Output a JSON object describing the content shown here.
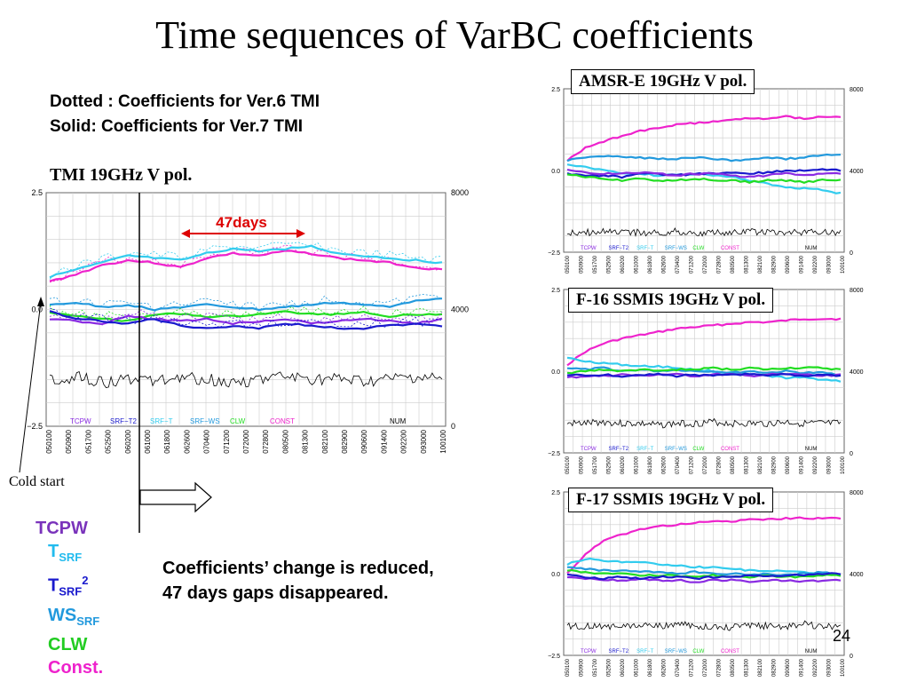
{
  "slide": {
    "title": "Time sequences of VarBC coefficients",
    "note_line1": "Dotted : Coefficients for Ver.6 TMI",
    "note_line2": "Solid: Coefficients for Ver.7 TMI",
    "cold_start": "Cold start",
    "summary_line1": "Coefficients’ change is reduced,",
    "summary_line2": "47 days gaps disappeared.",
    "page_number": "24",
    "gap_label": "47days"
  },
  "legend": {
    "tcpw": "TCPW",
    "tsrf_base": "T",
    "tsrf_sub": "SRF",
    "tsrf2_base": "T",
    "tsrf2_sub": "SRF",
    "tsrf2_sup": "2",
    "wssrf_base": "WS",
    "wssrf_sub": "SRF",
    "clw": "CLW",
    "const": "Const."
  },
  "colors": {
    "TCPW": "#8a2be2",
    "SRF-T2": "#1a1acd",
    "SRF-T": "#33ccee",
    "SRF-WS": "#2299dd",
    "CLW": "#22dd22",
    "CONST": "#ee22cc",
    "NUM": "#000000",
    "arrow": "#dd0000",
    "tcpw_text": "#7a33bb",
    "tsrf_text": "#22bbee",
    "tsrf2_text": "#1a1acd",
    "wssrf_text": "#2299dd",
    "clw_text": "#22cc22",
    "const_text": "#ee22cc"
  },
  "chart_data": [
    {
      "type": "line",
      "title": "TMI 19GHz V pol.",
      "ylim_left": [
        -2.5,
        2.5
      ],
      "ylim_right": [
        0,
        8000
      ],
      "left_ticks": [
        "2.5",
        "0.0",
        "−2.5"
      ],
      "right_ticks": [
        "8000",
        "4000",
        "0"
      ],
      "x_ticks": [
        "050100",
        "050900",
        "051700",
        "052500",
        "060200",
        "061000",
        "061800",
        "062600",
        "070400",
        "071200",
        "072000",
        "072800",
        "080500",
        "081300",
        "082100",
        "082900",
        "090600",
        "091400",
        "092200",
        "093000",
        "100100"
      ],
      "legend": [
        "TCPW",
        "SRF−T2",
        "SRF−T",
        "SRF−WS",
        "CLW",
        "CONST",
        "NUM"
      ],
      "grid": true,
      "series": [
        {
          "name": "CONST",
          "style": "solid",
          "values": [
            0.6,
            0.75,
            0.95,
            1.05,
            1.0,
            0.9,
            1.1,
            1.2,
            1.15,
            1.25,
            1.2,
            1.1,
            1.05,
            1.0,
            0.9,
            0.85
          ]
        },
        {
          "name": "SRF−T",
          "style": "solid",
          "values": [
            0.7,
            0.85,
            1.0,
            1.15,
            1.1,
            1.05,
            1.2,
            1.3,
            1.25,
            1.3,
            1.35,
            1.2,
            1.15,
            1.1,
            1.05,
            1.0
          ]
        },
        {
          "name": "SRF−WS",
          "style": "solid",
          "values": [
            0.1,
            0.15,
            0.05,
            0.1,
            0.0,
            0.05,
            0.1,
            0.05,
            0.0,
            0.05,
            0.1,
            0.15,
            0.1,
            0.05,
            0.2,
            0.25
          ]
        },
        {
          "name": "CLW",
          "style": "solid",
          "values": [
            -0.05,
            -0.15,
            -0.2,
            -0.25,
            -0.1,
            -0.1,
            -0.15,
            -0.15,
            -0.1,
            -0.05,
            -0.1,
            -0.1,
            -0.05,
            -0.15,
            -0.1,
            -0.1
          ]
        },
        {
          "name": "TCPW",
          "style": "solid",
          "values": [
            -0.2,
            -0.25,
            -0.3,
            -0.15,
            -0.2,
            -0.25,
            -0.2,
            -0.3,
            -0.25,
            -0.2,
            -0.3,
            -0.25,
            -0.2,
            -0.25,
            -0.3,
            -0.2
          ]
        },
        {
          "name": "SRF−T2",
          "style": "solid",
          "values": [
            -0.05,
            -0.2,
            -0.25,
            -0.3,
            -0.2,
            -0.35,
            -0.4,
            -0.35,
            -0.4,
            -0.3,
            -0.35,
            -0.4,
            -0.4,
            -0.35,
            -0.3,
            -0.35
          ]
        },
        {
          "name": "NUM",
          "style": "noisy",
          "values": [
            -1.5,
            -1.45,
            -1.55,
            -1.5,
            -1.5,
            -1.45,
            -1.5,
            -1.55,
            -1.5,
            -1.45,
            -1.5,
            -1.5,
            -1.55,
            -1.5,
            -1.45,
            -1.5
          ]
        }
      ]
    },
    {
      "type": "line",
      "title": "AMSR-E 19GHz V pol.",
      "ylim_left": [
        -2.5,
        2.5
      ],
      "ylim_right": [
        0,
        8000
      ],
      "left_ticks": [
        "2.5",
        "0.0",
        "−2.5"
      ],
      "right_ticks": [
        "8000",
        "4000",
        "0"
      ],
      "legend": [
        "TCPW",
        "SRF−T2",
        "SRF−T",
        "SRF−WS",
        "CLW",
        "CONST",
        "NUM"
      ],
      "grid": true,
      "series": [
        {
          "name": "CONST",
          "style": "solid",
          "values": [
            0.3,
            0.7,
            0.9,
            1.05,
            1.2,
            1.3,
            1.4,
            1.45,
            1.5,
            1.55,
            1.6,
            1.6,
            1.65,
            1.6,
            1.65,
            1.65
          ]
        },
        {
          "name": "SRF−WS",
          "style": "solid",
          "values": [
            0.3,
            0.4,
            0.45,
            0.4,
            0.4,
            0.35,
            0.35,
            0.4,
            0.35,
            0.3,
            0.35,
            0.4,
            0.35,
            0.4,
            0.45,
            0.5
          ]
        },
        {
          "name": "SRF−T",
          "style": "solid",
          "values": [
            0.2,
            0.1,
            0.0,
            -0.1,
            -0.1,
            -0.15,
            -0.15,
            -0.1,
            -0.15,
            -0.2,
            -0.3,
            -0.4,
            -0.5,
            -0.55,
            -0.6,
            -0.7
          ]
        },
        {
          "name": "SRF−T2",
          "style": "solid",
          "values": [
            -0.1,
            -0.15,
            -0.15,
            -0.2,
            -0.1,
            -0.1,
            -0.15,
            -0.1,
            -0.1,
            -0.05,
            -0.1,
            -0.05,
            0.0,
            0.0,
            0.05,
            0.0
          ]
        },
        {
          "name": "CLW",
          "style": "solid",
          "values": [
            -0.1,
            -0.2,
            -0.25,
            -0.3,
            -0.25,
            -0.3,
            -0.3,
            -0.25,
            -0.3,
            -0.3,
            -0.35,
            -0.3,
            -0.3,
            -0.35,
            -0.3,
            -0.3
          ]
        },
        {
          "name": "TCPW",
          "style": "solid",
          "values": [
            0.0,
            -0.05,
            -0.1,
            -0.1,
            -0.05,
            -0.1,
            -0.15,
            -0.1,
            -0.1,
            -0.15,
            -0.2,
            -0.15,
            -0.1,
            -0.15,
            -0.1,
            -0.1
          ]
        },
        {
          "name": "NUM",
          "style": "noisy",
          "values": [
            -1.9,
            -1.9,
            -1.85,
            -1.9,
            -1.9,
            -1.9,
            -1.85,
            -1.9,
            -1.9,
            -1.9,
            -1.85,
            -1.9,
            -1.9,
            -1.9,
            -1.85,
            -1.9
          ]
        }
      ]
    },
    {
      "type": "line",
      "title": "F-16 SSMIS 19GHz V pol.",
      "ylim_left": [
        -2.5,
        2.5
      ],
      "ylim_right": [
        0,
        8000
      ],
      "left_ticks": [
        "2.5",
        "0.0",
        "−2.5"
      ],
      "right_ticks": [
        "8000",
        "4000",
        "0"
      ],
      "legend": [
        "TCPW",
        "SRF−T2",
        "SRF−T",
        "SRF−WS",
        "CLW",
        "CONST",
        "NUM"
      ],
      "grid": true,
      "series": [
        {
          "name": "CONST",
          "style": "solid",
          "values": [
            0.2,
            0.6,
            0.85,
            1.0,
            1.1,
            1.2,
            1.3,
            1.35,
            1.4,
            1.45,
            1.5,
            1.5,
            1.55,
            1.6,
            1.6,
            1.6
          ]
        },
        {
          "name": "SRF−T",
          "style": "solid",
          "values": [
            0.4,
            0.3,
            0.25,
            0.2,
            0.15,
            0.15,
            0.1,
            0.05,
            0.0,
            -0.05,
            -0.1,
            -0.15,
            -0.2,
            -0.2,
            -0.25,
            -0.3
          ]
        },
        {
          "name": "SRF−WS",
          "style": "solid",
          "values": [
            0.1,
            0.05,
            0.1,
            0.0,
            0.05,
            0.0,
            0.05,
            0.0,
            0.0,
            -0.05,
            0.0,
            -0.05,
            0.0,
            -0.05,
            -0.05,
            -0.1
          ]
        },
        {
          "name": "CLW",
          "style": "solid",
          "values": [
            -0.05,
            0.0,
            0.05,
            0.0,
            0.05,
            0.0,
            0.05,
            0.05,
            0.1,
            0.05,
            0.1,
            0.05,
            0.1,
            0.1,
            0.1,
            0.05
          ]
        },
        {
          "name": "TCPW",
          "style": "solid",
          "values": [
            -0.2,
            -0.15,
            -0.15,
            -0.1,
            -0.15,
            -0.1,
            -0.1,
            -0.15,
            -0.1,
            -0.1,
            -0.15,
            -0.1,
            -0.1,
            -0.1,
            -0.15,
            -0.1
          ]
        },
        {
          "name": "SRF−T2",
          "style": "solid",
          "values": [
            -0.1,
            -0.15,
            -0.1,
            -0.15,
            -0.1,
            -0.1,
            -0.15,
            -0.1,
            -0.15,
            -0.1,
            -0.1,
            -0.15,
            -0.1,
            -0.15,
            -0.1,
            -0.15
          ]
        },
        {
          "name": "NUM",
          "style": "noisy",
          "values": [
            -1.6,
            -1.6,
            -1.55,
            -1.6,
            -1.6,
            -1.65,
            -1.6,
            -1.6,
            -1.55,
            -1.6,
            -1.6,
            -1.6,
            -1.55,
            -1.6,
            -1.6,
            -1.6
          ]
        }
      ]
    },
    {
      "type": "line",
      "title": "F-17 SSMIS 19GHz V pol.",
      "ylim_left": [
        -2.5,
        2.5
      ],
      "ylim_right": [
        0,
        8000
      ],
      "left_ticks": [
        "2.5",
        "0.0",
        "−2.5"
      ],
      "right_ticks": [
        "8000",
        "4000",
        "0"
      ],
      "legend": [
        "TCPW",
        "SRF−T2",
        "SRF−T",
        "SRF−WS",
        "CLW",
        "CONST",
        "NUM"
      ],
      "grid": true,
      "series": [
        {
          "name": "CONST",
          "style": "solid",
          "values": [
            0.0,
            0.6,
            1.0,
            1.2,
            1.35,
            1.45,
            1.5,
            1.55,
            1.6,
            1.6,
            1.65,
            1.65,
            1.7,
            1.7,
            1.7,
            1.7
          ]
        },
        {
          "name": "SRF−T",
          "style": "solid",
          "values": [
            0.3,
            0.45,
            0.4,
            0.35,
            0.35,
            0.3,
            0.25,
            0.2,
            0.2,
            0.15,
            0.1,
            0.1,
            0.05,
            0.05,
            0.0,
            0.0
          ]
        },
        {
          "name": "SRF−WS",
          "style": "solid",
          "values": [
            0.2,
            0.15,
            0.1,
            0.1,
            0.05,
            0.05,
            0.0,
            0.05,
            0.0,
            0.0,
            -0.05,
            0.0,
            -0.05,
            0.0,
            0.05,
            0.0
          ]
        },
        {
          "name": "CLW",
          "style": "solid",
          "values": [
            0.1,
            0.05,
            0.0,
            0.0,
            -0.05,
            -0.05,
            -0.05,
            -0.1,
            -0.05,
            -0.1,
            -0.1,
            -0.05,
            -0.1,
            -0.1,
            -0.05,
            -0.05
          ]
        },
        {
          "name": "TCPW",
          "style": "solid",
          "values": [
            -0.1,
            -0.15,
            -0.2,
            -0.2,
            -0.15,
            -0.2,
            -0.2,
            -0.25,
            -0.2,
            -0.2,
            -0.25,
            -0.2,
            -0.2,
            -0.25,
            -0.2,
            -0.2
          ]
        },
        {
          "name": "SRF−T2",
          "style": "solid",
          "values": [
            0.0,
            -0.1,
            -0.15,
            -0.1,
            -0.15,
            -0.1,
            -0.1,
            -0.15,
            -0.1,
            -0.1,
            -0.05,
            -0.1,
            -0.05,
            -0.05,
            0.0,
            0.0
          ]
        },
        {
          "name": "NUM",
          "style": "noisy",
          "values": [
            -1.6,
            -1.6,
            -1.65,
            -1.6,
            -1.6,
            -1.6,
            -1.55,
            -1.6,
            -1.6,
            -1.65,
            -1.6,
            -1.6,
            -1.6,
            -1.55,
            -1.6,
            -1.6
          ]
        }
      ]
    }
  ]
}
